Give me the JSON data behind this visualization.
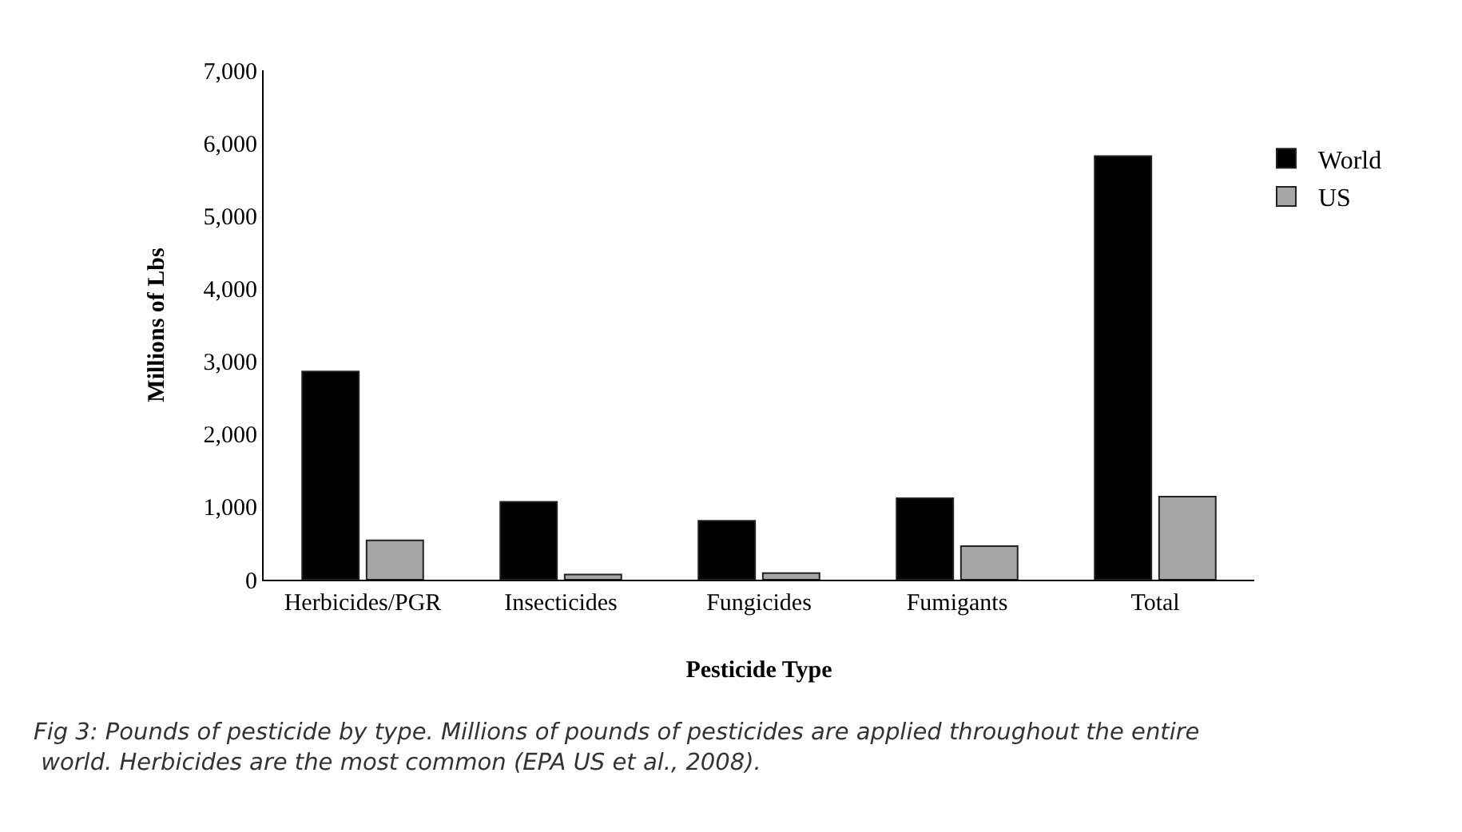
{
  "chart_data": {
    "type": "bar",
    "xlabel": "Pesticide Type",
    "ylabel": "Millions of Lbs",
    "categories": [
      "Herbicides/PGR",
      "Insecticides",
      "Fungicides",
      "Fumigants",
      "Total"
    ],
    "series": [
      {
        "name": "World",
        "color": "#000000",
        "values": [
          2860,
          1070,
          810,
          1120,
          5820
        ]
      },
      {
        "name": "US",
        "color": "#a6a6a6",
        "values": [
          540,
          70,
          90,
          460,
          1140
        ]
      }
    ],
    "ylim": [
      0,
      7000
    ],
    "yticks": [
      {
        "value": 0,
        "label": "0"
      },
      {
        "value": 1000,
        "label": "1,000"
      },
      {
        "value": 2000,
        "label": "2,000"
      },
      {
        "value": 3000,
        "label": "3,000"
      },
      {
        "value": 4000,
        "label": "4,000"
      },
      {
        "value": 5000,
        "label": "5,000"
      },
      {
        "value": 6000,
        "label": "6,000"
      },
      {
        "value": 7000,
        "label": "7,000"
      }
    ],
    "grid": false,
    "legend": "top right",
    "annotations": [
      "Fig 3: Pounds of pesticide by type. Millions of pounds of pesticides are applied throughout the entire\n world. Herbicides are the most common (EPA US et al., 2008)."
    ]
  }
}
